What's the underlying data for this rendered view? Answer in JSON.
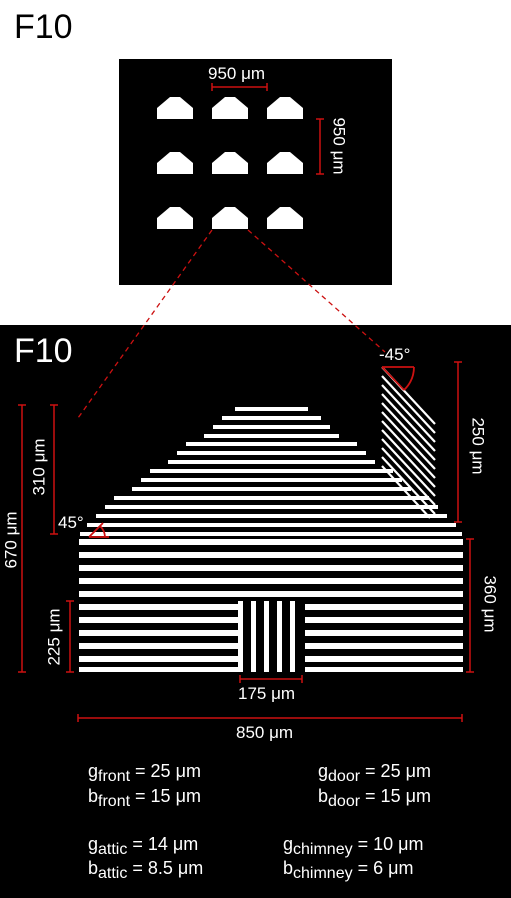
{
  "figure": {
    "top_label": "F10",
    "bottom_label": "F10",
    "top_pitch_horizontal": "950 μm",
    "top_pitch_vertical": "950 μm",
    "dims": {
      "total_height": "670 μm",
      "roof_height": "310 μm",
      "door_height": "225 μm",
      "chimney_height": "250 μm",
      "wall_height": "360 μm",
      "door_width": "175 μm",
      "total_width": "850 μm",
      "roof_angle": "45°",
      "chimney_angle": "-45°"
    },
    "legend": [
      {
        "sym": "g",
        "sub": "front",
        "rest": " = 25 μm"
      },
      {
        "sym": "b",
        "sub": "front",
        "rest": " = 15 μm"
      },
      {
        "sym": "g",
        "sub": "door",
        "rest": " = 25 μm"
      },
      {
        "sym": "b",
        "sub": "door",
        "rest": " = 15 μm"
      },
      {
        "sym": "g",
        "sub": "attic",
        "rest": " = 14 μm"
      },
      {
        "sym": "b",
        "sub": "attic",
        "rest": " = 8.5 μm"
      },
      {
        "sym": "g",
        "sub": "chimney",
        "rest": " = 10 μm"
      },
      {
        "sym": "b",
        "sub": "chimney",
        "rest": " = 6 μm"
      }
    ]
  },
  "colors": {
    "background": "#000000",
    "foreground": "#ffffff",
    "dimension": "#cc1111"
  }
}
